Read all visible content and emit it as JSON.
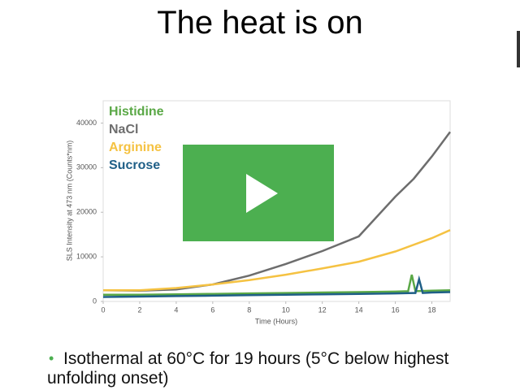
{
  "slide_title": "The heat is on",
  "bullet": "Isothermal at 60°C for 19 hours (5°C below highest unfolding onset)",
  "chart_data": {
    "type": "line",
    "x_label": "Time (Hours)",
    "y_label": "SLS Intensity at 473 nm (Counts*nm)",
    "xlim": [
      0,
      19
    ],
    "xticks": [
      0,
      2,
      4,
      6,
      8,
      10,
      12,
      14,
      16,
      18
    ],
    "ylim": [
      0,
      45000
    ],
    "yticks": [
      0,
      10000,
      20000,
      30000,
      40000
    ],
    "series": [
      {
        "name": "Histidine",
        "color": "#5aa846",
        "x": [
          0,
          2,
          4,
          6,
          8,
          10,
          12,
          14,
          16,
          16.7,
          16.9,
          17.1,
          18,
          19
        ],
        "values": [
          1500,
          1500,
          1600,
          1700,
          1800,
          1900,
          2000,
          2100,
          2200,
          2300,
          6000,
          2300,
          2400,
          2500
        ]
      },
      {
        "name": "NaCl",
        "color": "#6d6d6d",
        "x": [
          0,
          2,
          4,
          6,
          8,
          10,
          12,
          14,
          16,
          17,
          18,
          19
        ],
        "values": [
          2500,
          2400,
          2700,
          3800,
          5800,
          8400,
          11300,
          14600,
          23500,
          27500,
          32500,
          38000
        ]
      },
      {
        "name": "Arginine",
        "color": "#f5c242",
        "x": [
          0,
          2,
          4,
          6,
          8,
          10,
          12,
          14,
          16,
          18,
          19
        ],
        "values": [
          2500,
          2500,
          3000,
          3800,
          4800,
          6000,
          7400,
          8900,
          11200,
          14200,
          16000
        ]
      },
      {
        "name": "Sucrose",
        "color": "#1f5f87",
        "x": [
          0,
          2,
          4,
          6,
          8,
          10,
          12,
          14,
          16,
          17.1,
          17.3,
          17.5,
          18,
          19
        ],
        "values": [
          1000,
          1100,
          1200,
          1300,
          1400,
          1500,
          1600,
          1700,
          1800,
          1900,
          5000,
          1900,
          2000,
          2100
        ]
      }
    ]
  }
}
